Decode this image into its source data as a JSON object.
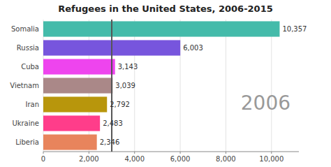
{
  "chart_data": {
    "type": "bar",
    "orientation": "horizontal",
    "title": "Refugees in the United States, 2006-2015",
    "categories": [
      "Liberia",
      "Ukraine",
      "Iran",
      "Vietnam",
      "Cuba",
      "Russia",
      "Somalia"
    ],
    "values": [
      2346,
      2483,
      2792,
      3039,
      3143,
      6003,
      10357
    ],
    "value_labels": [
      "2,346",
      "2,483",
      "2,792",
      "3,039",
      "3,143",
      "6,003",
      "10,357"
    ],
    "data_labels": true,
    "colors": [
      "#E8845C",
      "#FF3D8A",
      "#B8960C",
      "#AA8888",
      "#EE44EE",
      "#7755DD",
      "#44BBAA"
    ],
    "xlim": [
      0,
      11200
    ],
    "xticks": [
      0,
      {
        "value": 2000,
        "label": "2,000"
      },
      {
        "value": 4000,
        "label": "4,000"
      },
      {
        "value": 6000,
        "label": "6,000"
      },
      {
        "value": 8000,
        "label": "8,000"
      },
      {
        "value": 10000,
        "label": "10,000"
      }
    ],
    "reference_line": 3000,
    "annotation": "2006",
    "grid": true
  }
}
